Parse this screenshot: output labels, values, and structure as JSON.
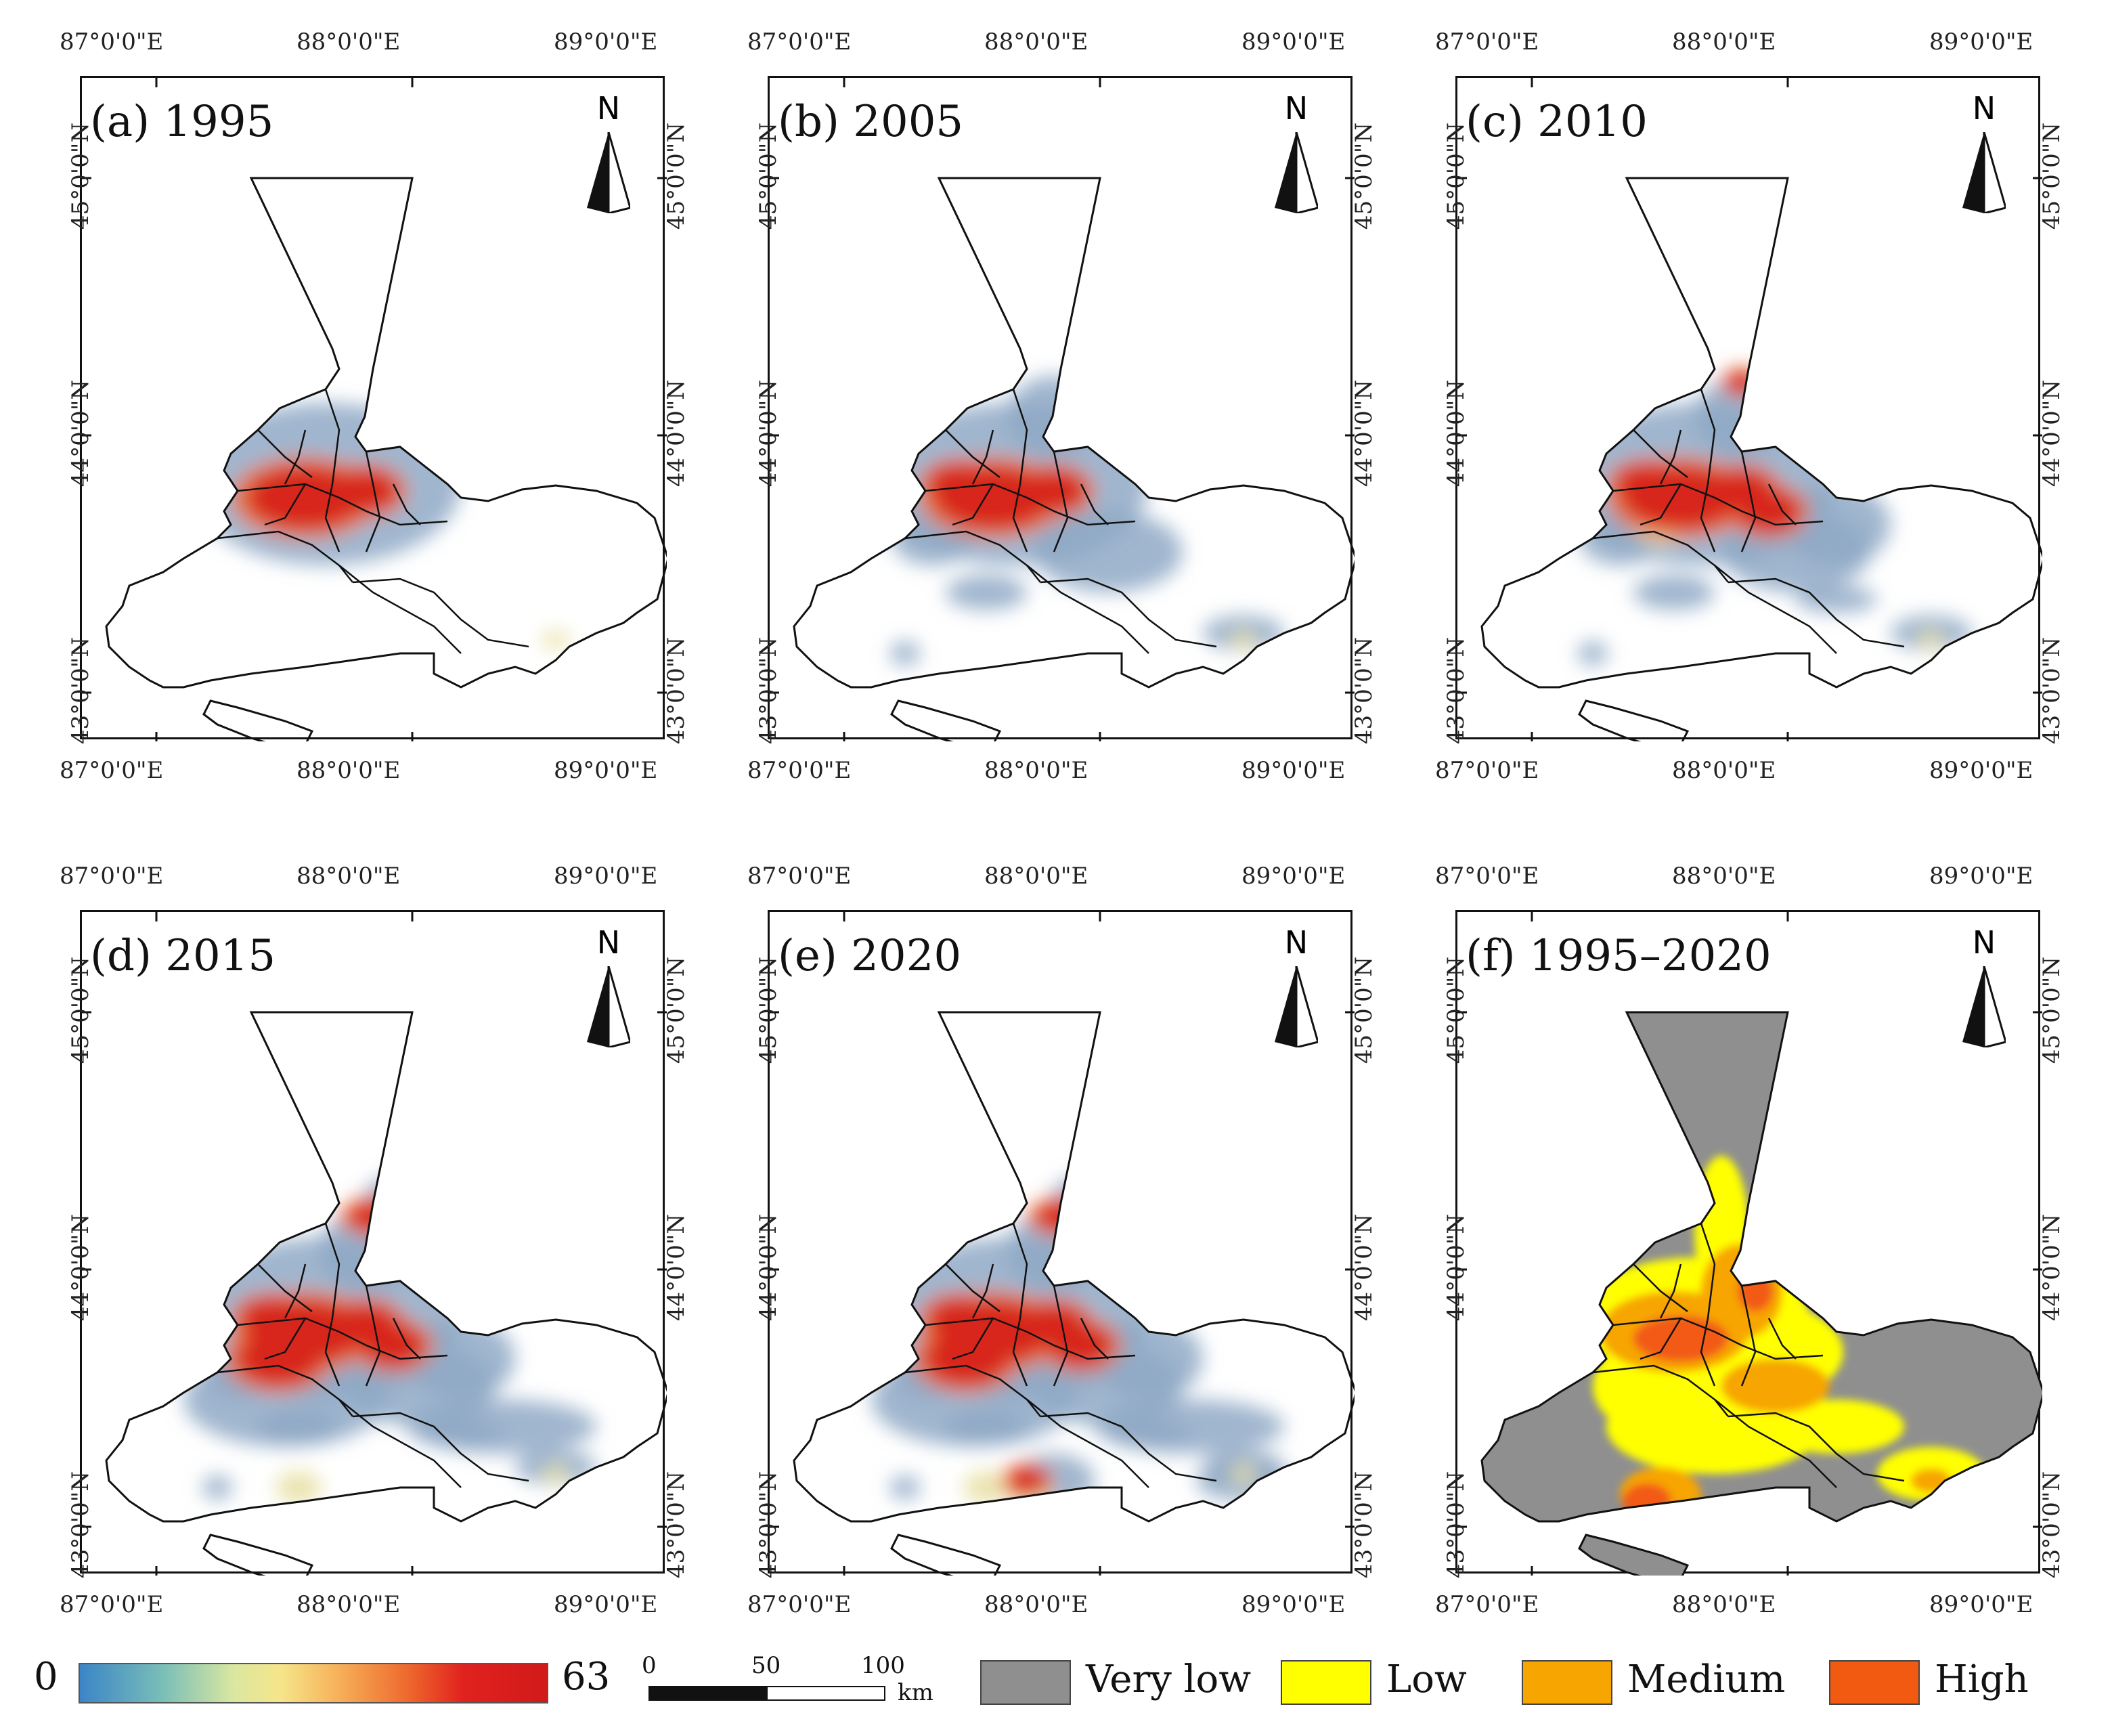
{
  "colors": {
    "boundary": "#111111",
    "density_blue": "#8fa9c6",
    "density_yellow": "#e8e1a6",
    "density_orange": "#ee7a3a",
    "density_red": "#d8251d",
    "very_low": "#8f8f8f",
    "low": "#ffff00",
    "medium": "#f7a500",
    "high": "#f25a12"
  },
  "panels": [
    {
      "id": "a",
      "label": "(a) 1995",
      "kind": "density",
      "level": 1
    },
    {
      "id": "b",
      "label": "(b) 2005",
      "kind": "density",
      "level": 2
    },
    {
      "id": "c",
      "label": "(c) 2010",
      "kind": "density",
      "level": 3
    },
    {
      "id": "d",
      "label": "(d) 2015",
      "kind": "density",
      "level": 4
    },
    {
      "id": "e",
      "label": "(e) 2020",
      "kind": "density",
      "level": 5
    },
    {
      "id": "f",
      "label": "(f) 1995–2020",
      "kind": "classes",
      "level": 6
    }
  ],
  "north_arrow": {
    "letter": "N"
  },
  "longitude_ticks": [
    "87°0'0\"E",
    "88°0'0\"E",
    "89°0'0\"E"
  ],
  "latitude_ticks": [
    "43°0'0\"N",
    "44°0'0\"N",
    "45°0'0\"N"
  ],
  "legend": {
    "colorbar": {
      "min_label": "0",
      "max_label": "63"
    },
    "scalebar": {
      "tick0": "0",
      "tick1": "50",
      "tick2": "100",
      "unit": "km"
    },
    "classes": [
      {
        "label": "Very low",
        "color": "#8f8f8f"
      },
      {
        "label": "Low",
        "color": "#ffff00"
      },
      {
        "label": "Medium",
        "color": "#f7a500"
      },
      {
        "label": "High",
        "color": "#f25a12"
      }
    ]
  }
}
